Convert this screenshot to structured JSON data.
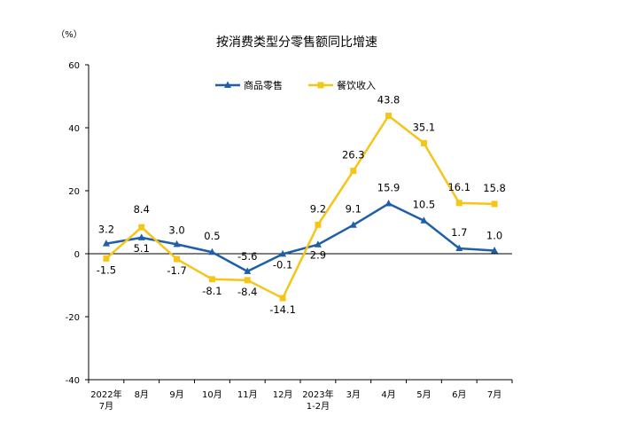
{
  "chart_data": {
    "type": "line",
    "title": "按消费类型分零售额同比增速",
    "unit_label": "（%）",
    "ylim": [
      -40,
      60
    ],
    "yticks": [
      "60",
      "40",
      "20",
      "0",
      "-20",
      "-40"
    ],
    "ytick_values": [
      60,
      40,
      20,
      0,
      -20,
      -40
    ],
    "categories": [
      [
        "2022年",
        "7月"
      ],
      [
        "8月"
      ],
      [
        "9月"
      ],
      [
        "10月"
      ],
      [
        "11月"
      ],
      [
        "12月"
      ],
      [
        "2023年",
        "1-2月"
      ],
      [
        "3月"
      ],
      [
        "4月"
      ],
      [
        "5月"
      ],
      [
        "6月"
      ],
      [
        "7月"
      ]
    ],
    "legend_position": "top-center",
    "grid": false,
    "series": [
      {
        "name": "商品零售",
        "color": "#1f5fa8",
        "marker": "triangle",
        "values": [
          3.2,
          5.1,
          3.0,
          0.5,
          -5.6,
          -0.1,
          2.9,
          9.1,
          15.9,
          10.5,
          1.7,
          1.0
        ],
        "labels": [
          "3.2",
          "5.1",
          "3.0",
          "0.5",
          "-5.6",
          "-0.1",
          "2.9",
          "9.1",
          "15.9",
          "10.5",
          "1.7",
          "1.0"
        ]
      },
      {
        "name": "餐饮收入",
        "color": "#f5c518",
        "marker": "square",
        "values": [
          -1.5,
          8.4,
          -1.7,
          -8.1,
          -8.4,
          -14.1,
          9.2,
          26.3,
          43.8,
          35.1,
          16.1,
          15.8
        ],
        "labels": [
          "-1.5",
          "8.4",
          "-1.7",
          "-8.1",
          "-8.4",
          "-14.1",
          "9.2",
          "26.3",
          "43.8",
          "35.1",
          "16.1",
          "15.8"
        ]
      }
    ]
  }
}
